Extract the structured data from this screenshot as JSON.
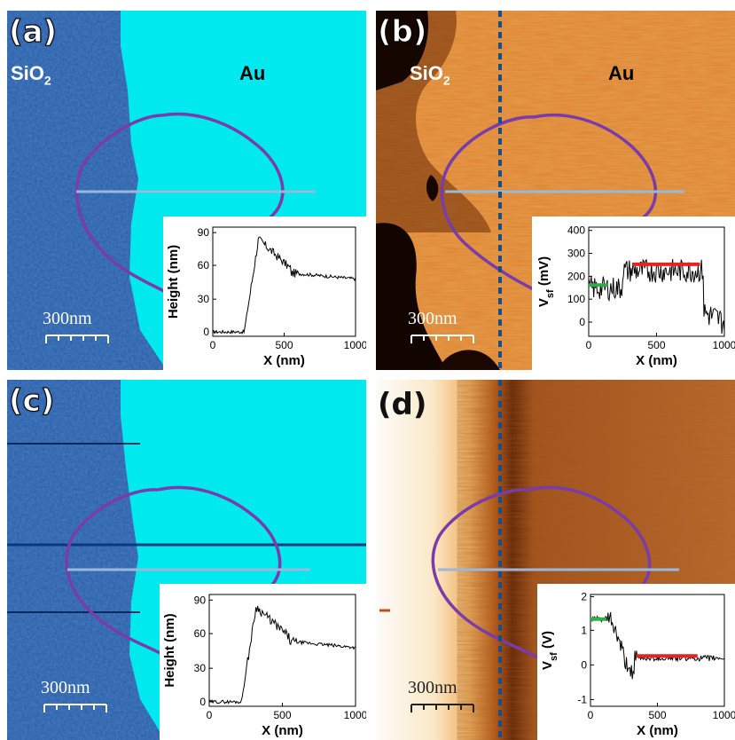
{
  "panels": {
    "a": {
      "label": "(a)",
      "left_material": "SiO",
      "left_sub": "2",
      "right_material": "Au",
      "scale": "300nm"
    },
    "b": {
      "label": "(b)",
      "left_material": "SiO",
      "left_sub": "2",
      "right_material": "Au",
      "scale": "300nm"
    },
    "c": {
      "label": "(c)",
      "scale": "300nm"
    },
    "d": {
      "label": "(d)",
      "scale": "300nm"
    }
  },
  "insets": {
    "a": {
      "xlabel": "X (nm)",
      "ylabel": "Height (nm)",
      "xticks": [
        "0",
        "500",
        "1000"
      ],
      "yticks": [
        "0",
        "30",
        "60",
        "90"
      ]
    },
    "b": {
      "xlabel": "X (nm)",
      "ylabel_main": "V",
      "ylabel_sub": "sf",
      "ylabel_unit": " (mV)",
      "xticks": [
        "0",
        "500",
        "1000"
      ],
      "yticks": [
        "0",
        "100",
        "200",
        "300",
        "400"
      ]
    },
    "c": {
      "xlabel": "X (nm)",
      "ylabel": "Height (nm)",
      "xticks": [
        "0",
        "500",
        "1000"
      ],
      "yticks": [
        "0",
        "30",
        "60",
        "90"
      ]
    },
    "d": {
      "xlabel": "X (nm)",
      "ylabel_main": "V",
      "ylabel_sub": "sf",
      "ylabel_unit": " (V)",
      "xticks": [
        "0",
        "500",
        "1000"
      ],
      "yticks": [
        "-1",
        "0",
        "1",
        "2"
      ]
    }
  },
  "colors": {
    "sio2_topo": "#2a5fa8",
    "au_topo": "#00e8ee",
    "kpfm_bright": "#e58a35",
    "kpfm_dark": "#140700",
    "contour": "#7a3ca8",
    "scanline": "#9ab8dc",
    "dashed": "#1a4e8a",
    "green_mark": "#2cae4a",
    "red_mark": "#e82222"
  }
}
